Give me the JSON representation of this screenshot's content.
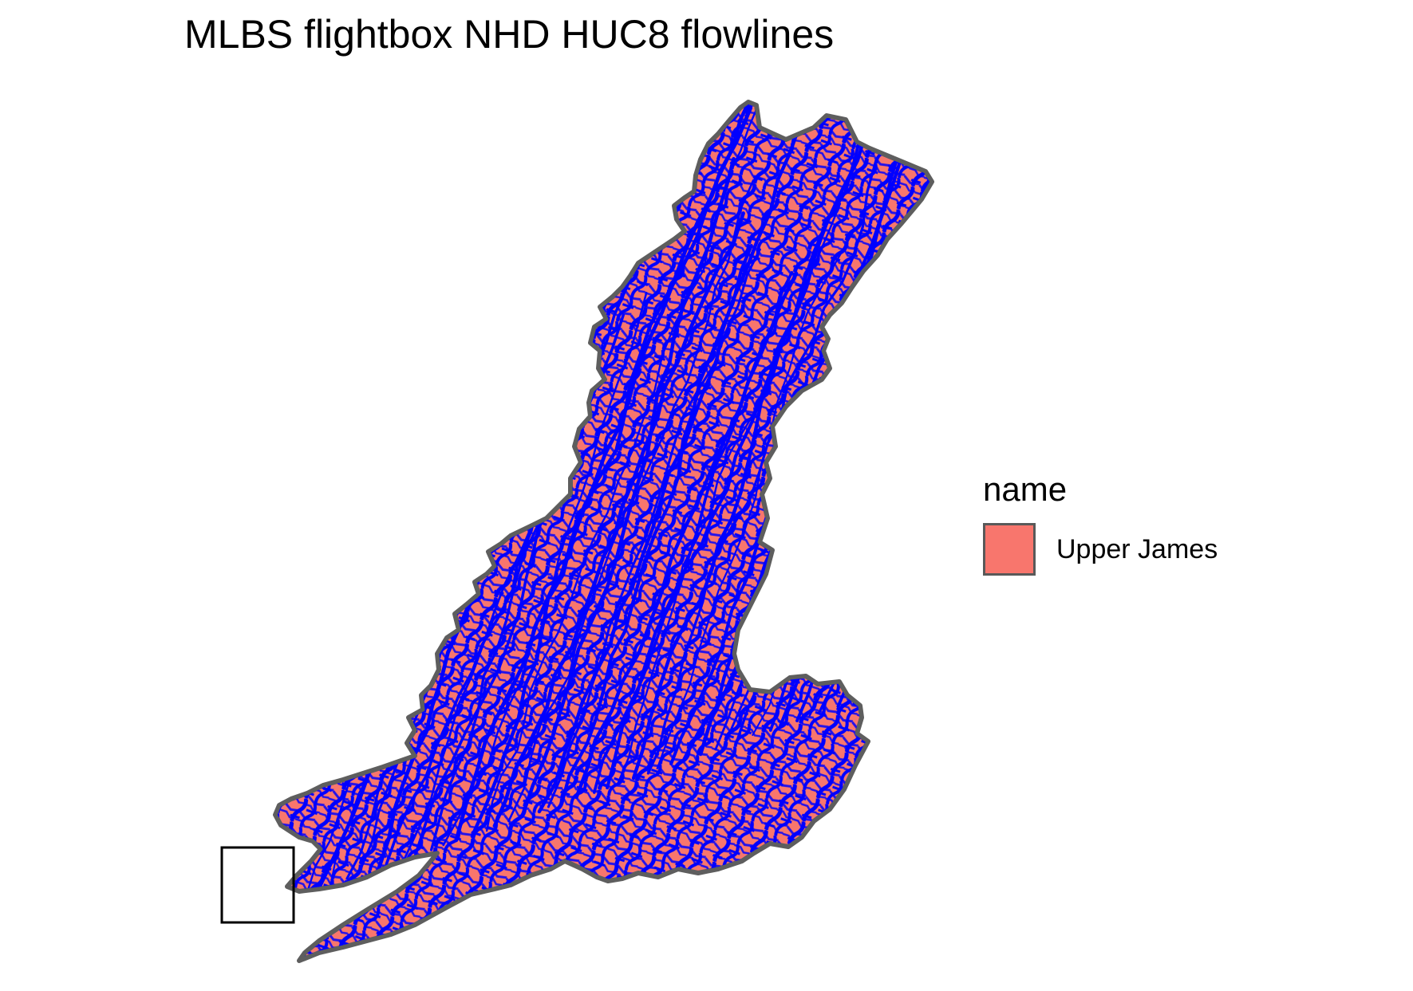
{
  "title": "MLBS flightbox NHD HUC8 flowlines",
  "legend": {
    "title": "name",
    "items": [
      {
        "label": "Upper James",
        "color": "#F8766D"
      }
    ]
  },
  "colors": {
    "polygon_fill": "#F8766D",
    "polygon_outline": "#5E5E5E",
    "flowlines": "#0000FF",
    "flightbox_outline": "#000000",
    "background": "#FFFFFF"
  },
  "layers": [
    "huc8-polygon",
    "nhd-flowlines",
    "mlbs-flightbox"
  ]
}
